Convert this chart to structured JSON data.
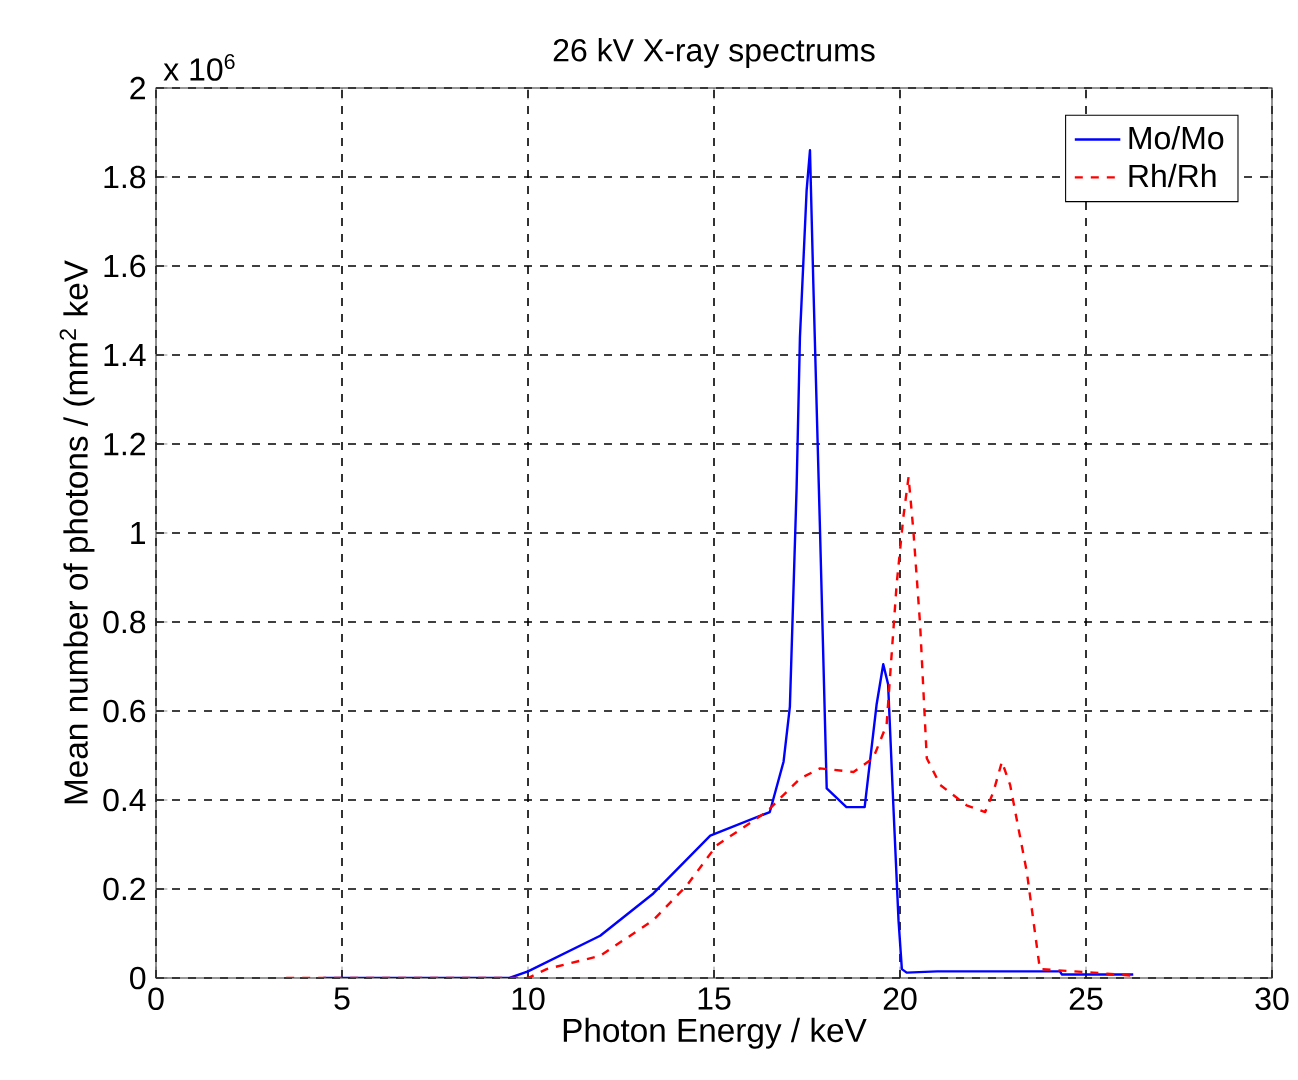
{
  "chart_data": {
    "type": "line",
    "title": "26 kV X-ray spectrums",
    "xlabel": "Photon Energy / keV",
    "ylabel": "Mean number of photons / (mm$^{2}$ keV",
    "annotations": [
      "x 10$^{6}$"
    ],
    "xlim": [
      0,
      30
    ],
    "ylim": [
      0,
      2
    ],
    "xticks": [
      0,
      5,
      10,
      15,
      20,
      25,
      30
    ],
    "yticks": [
      0,
      0.2,
      0.4,
      0.6,
      0.8,
      1,
      1.2,
      1.4,
      1.6,
      1.8,
      2
    ],
    "grid": true,
    "legend": "top right",
    "marker": "none",
    "series": [
      {
        "name": "Mo/Mo",
        "color": "#0000ff",
        "line_style": "solid",
        "x": [
          4.5,
          9.5,
          10,
          11.94,
          13.37,
          14.9,
          16.5,
          16.87,
          17.04,
          17.22,
          17.31,
          17.49,
          17.58,
          17.67,
          17.85,
          18.03,
          18.56,
          19.05,
          19.37,
          19.55,
          19.68,
          19.82,
          19.96,
          20.05,
          20.18,
          21.0,
          24.3,
          24.35,
          26.27
        ],
        "values": [
          0,
          0,
          0.015,
          0.095,
          0.19,
          0.32,
          0.373,
          0.486,
          0.61,
          1.1,
          1.44,
          1.77,
          1.86,
          1.56,
          1.005,
          0.426,
          0.384,
          0.384,
          0.614,
          0.705,
          0.66,
          0.39,
          0.13,
          0.02,
          0.012,
          0.015,
          0.015,
          0.008,
          0.008
        ]
      },
      {
        "name": "Rh/Rh",
        "color": "#ff0000",
        "line_style": "dashed",
        "x": [
          3.5,
          10,
          10.5,
          11.94,
          13.37,
          14.27,
          15.07,
          16.41,
          17.31,
          17.85,
          18.75,
          19.28,
          19.64,
          19.91,
          20.09,
          20.23,
          20.36,
          20.54,
          20.72,
          21.08,
          21.79,
          22.29,
          22.51,
          22.74,
          22.96,
          23.41,
          23.76,
          25.2,
          26.27
        ],
        "values": [
          0,
          0,
          0.02,
          0.05,
          0.13,
          0.208,
          0.298,
          0.373,
          0.448,
          0.471,
          0.463,
          0.494,
          0.569,
          0.885,
          1.036,
          1.126,
          1.005,
          0.795,
          0.494,
          0.434,
          0.388,
          0.373,
          0.418,
          0.486,
          0.434,
          0.238,
          0.02,
          0.012,
          0.005
        ]
      }
    ]
  }
}
